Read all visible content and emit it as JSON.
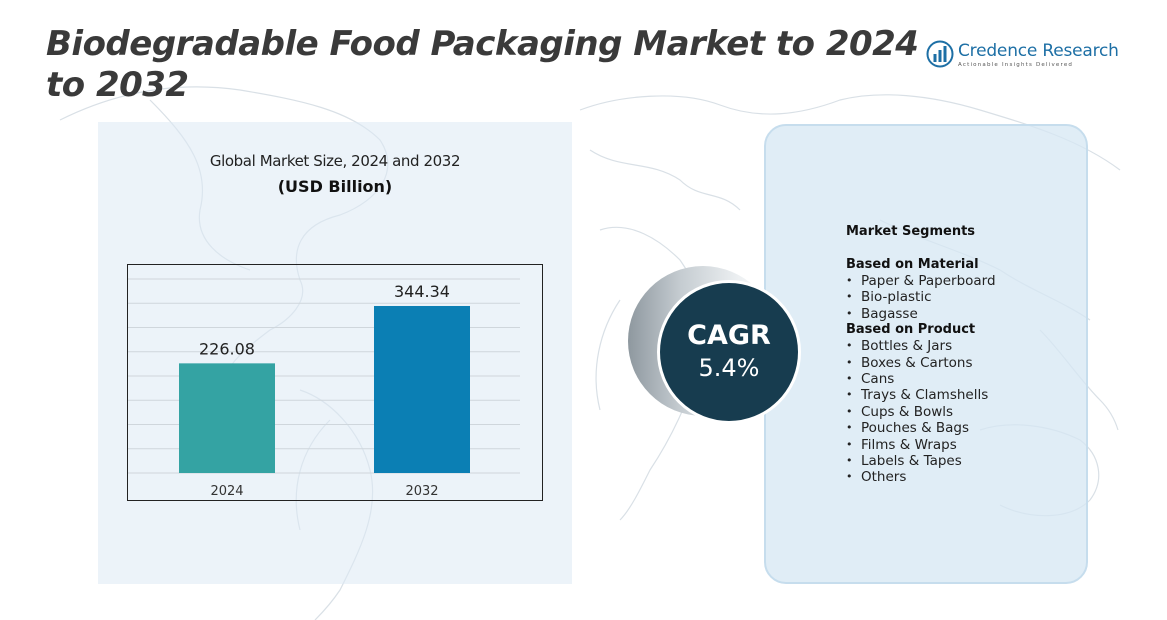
{
  "header": {
    "title": "Biodegradable Food Packaging Market to 2024 to 2032",
    "logo_name": "Credence Research",
    "logo_tagline": "Actionable Insights Delivered"
  },
  "chart_data": {
    "type": "bar",
    "title": "Global Market Size, 2024 and 2032",
    "subtitle": "(USD Billion)",
    "categories": [
      "2024",
      "2032"
    ],
    "values": [
      226.08,
      344.34
    ],
    "value_labels": [
      "226.08",
      "344.34"
    ],
    "colors": [
      "#34a3a3",
      "#0b7fb4"
    ],
    "ylim": [
      0,
      400
    ],
    "grid": true,
    "legend": "none"
  },
  "cagr": {
    "label": "CAGR",
    "value": "5.4%"
  },
  "segments": {
    "heading": "Market Segments",
    "groups": [
      {
        "title": "Based on Material",
        "items": [
          "Paper & Paperboard",
          "Bio-plastic",
          "Bagasse"
        ]
      },
      {
        "title": "Based on Product",
        "items": [
          "Bottles & Jars",
          "Boxes & Cartons",
          "Cans",
          "Trays & Clamshells",
          "Cups & Bowls",
          "Pouches & Bags",
          "Films & Wraps",
          "Labels & Tapes",
          "Others"
        ]
      }
    ]
  },
  "colors": {
    "title": "#3a3a3a",
    "brand": "#1d6fa5",
    "cagr_fill": "#173c4f",
    "panel": "#dceaf4"
  }
}
